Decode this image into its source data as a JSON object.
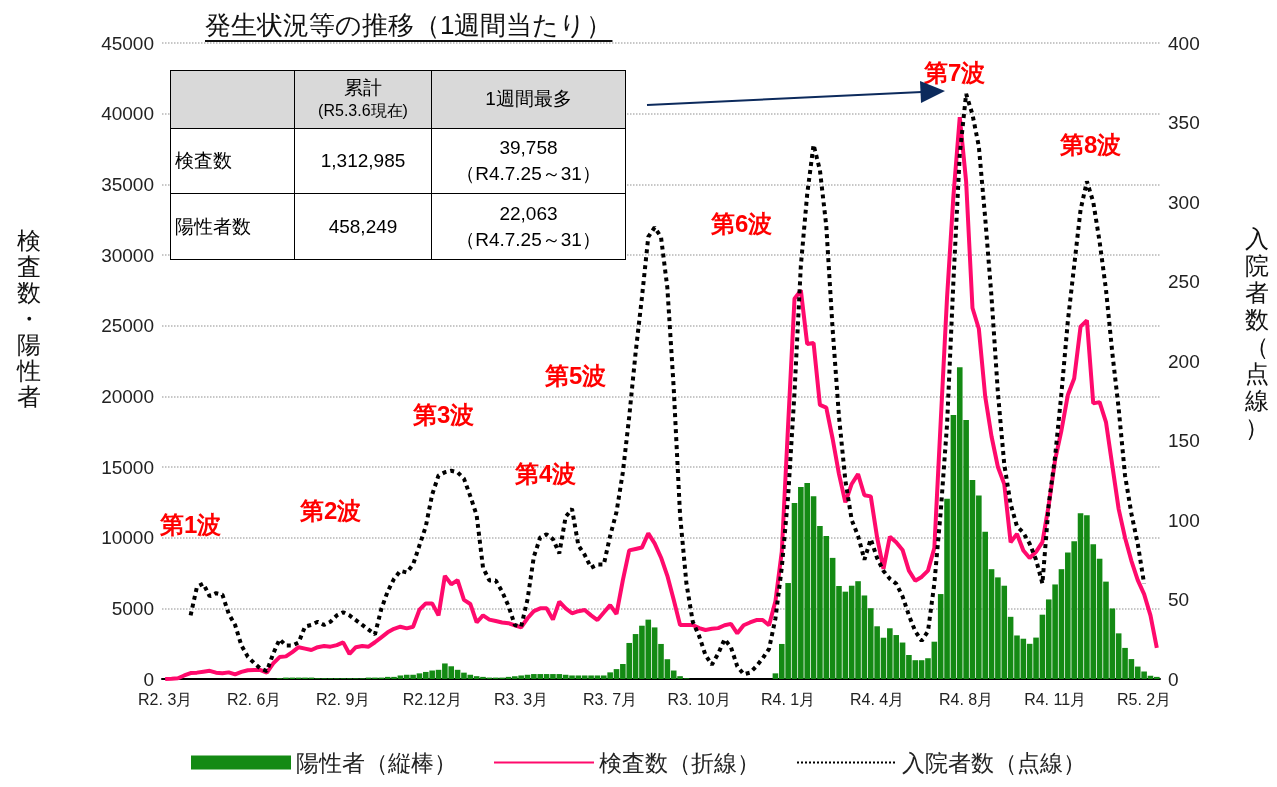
{
  "chart_data": {
    "type": "bar",
    "title": "発生状況等の推移（1週間当たり）",
    "ylabel": "検査数・陽性者",
    "y2label": "入院者数（点線）",
    "categories": [
      "R2. 3月",
      null,
      null,
      null,
      null,
      null,
      null,
      null,
      null,
      null,
      null,
      null,
      null,
      null,
      "R2. 6月",
      null,
      null,
      null,
      null,
      null,
      null,
      null,
      null,
      null,
      null,
      null,
      null,
      null,
      "R2. 9月",
      null,
      null,
      null,
      null,
      null,
      null,
      null,
      null,
      null,
      null,
      null,
      null,
      null,
      "R2.12月",
      null,
      null,
      null,
      null,
      null,
      null,
      null,
      null,
      null,
      null,
      null,
      null,
      null,
      "R3. 3月",
      null,
      null,
      null,
      null,
      null,
      null,
      null,
      null,
      null,
      null,
      null,
      null,
      null,
      "R3. 7月",
      null,
      null,
      null,
      null,
      null,
      null,
      null,
      null,
      null,
      null,
      null,
      null,
      null,
      "R3. 10月",
      null,
      null,
      null,
      null,
      null,
      null,
      null,
      null,
      null,
      null,
      null,
      null,
      null,
      "R4. 1月",
      null,
      null,
      null,
      null,
      null,
      null,
      null,
      null,
      null,
      null,
      null,
      null,
      null,
      "R4. 4月",
      null,
      null,
      null,
      null,
      null,
      null,
      null,
      null,
      null,
      null,
      null,
      null,
      null,
      "R4. 8月",
      null,
      null,
      null,
      null,
      null,
      null,
      null,
      null,
      null,
      null,
      null,
      null,
      null,
      "R4. 11月",
      null,
      null,
      null,
      null,
      null,
      null,
      null,
      null,
      null,
      null,
      null,
      null,
      null,
      "R5. 2月",
      null,
      null
    ],
    "series": [
      {
        "name": "陽性者（縦棒）",
        "type": "bar",
        "color": "#148a14",
        "values": [
          0,
          0,
          0,
          0,
          0,
          0,
          0,
          0,
          0,
          0,
          0,
          0,
          0,
          0,
          0,
          0,
          0,
          0,
          50,
          100,
          100,
          100,
          100,
          100,
          50,
          50,
          50,
          50,
          50,
          50,
          50,
          50,
          100,
          100,
          100,
          150,
          150,
          250,
          300,
          300,
          400,
          500,
          600,
          650,
          1100,
          900,
          650,
          450,
          300,
          200,
          150,
          100,
          100,
          100,
          150,
          200,
          250,
          300,
          350,
          350,
          350,
          350,
          350,
          300,
          250,
          250,
          250,
          250,
          250,
          250,
          470,
          700,
          1060,
          2550,
          3180,
          3770,
          4200,
          3650,
          2480,
          1400,
          600,
          200,
          50,
          0,
          0,
          0,
          0,
          0,
          0,
          0,
          0,
          0,
          0,
          0,
          0,
          0,
          400,
          2480,
          6790,
          12450,
          13580,
          13860,
          12930,
          10830,
          10120,
          8570,
          6580,
          6180,
          6600,
          6920,
          5910,
          5010,
          3730,
          2920,
          3590,
          3110,
          2580,
          1700,
          1330,
          1330,
          1470,
          2640,
          6010,
          12760,
          18680,
          22063,
          18330,
          14080,
          12990,
          10410,
          7770,
          7190,
          6600,
          4400,
          3080,
          2850,
          2490,
          2930,
          4550,
          5630,
          6690,
          7770,
          8950,
          9740,
          11730,
          11590,
          9530,
          8510,
          6890,
          4990,
          3230,
          2200,
          1410,
          880,
          530,
          230,
          150
        ]
      },
      {
        "name": "検査数（折線）",
        "type": "line",
        "color": "#ff0a6c",
        "line_style": "solid",
        "values": [
          0,
          20,
          50,
          250,
          420,
          450,
          520,
          580,
          450,
          400,
          470,
          330,
          500,
          620,
          630,
          630,
          450,
          1100,
          1550,
          1600,
          1900,
          2250,
          2150,
          2050,
          2250,
          2330,
          2290,
          2400,
          2590,
          1770,
          2250,
          2330,
          2290,
          2600,
          2950,
          3300,
          3550,
          3700,
          3580,
          3700,
          4900,
          5350,
          5350,
          4500,
          7300,
          6700,
          7000,
          5600,
          5310,
          4000,
          4500,
          4200,
          4100,
          4000,
          3950,
          3800,
          3660,
          4300,
          4800,
          5000,
          5000,
          4200,
          5470,
          5000,
          4650,
          4800,
          4880,
          4500,
          4170,
          4700,
          5230,
          4600,
          7000,
          9100,
          9200,
          9300,
          10300,
          9600,
          8600,
          7300,
          5600,
          3820,
          3820,
          3820,
          3600,
          3470,
          3550,
          3600,
          3800,
          3900,
          3230,
          3800,
          4000,
          4170,
          4170,
          3800,
          5500,
          9000,
          18000,
          26900,
          27500,
          23700,
          23780,
          19390,
          19200,
          17000,
          14500,
          12500,
          13800,
          14500,
          13000,
          12920,
          10000,
          7800,
          10070,
          9670,
          9130,
          7670,
          6950,
          7220,
          7670,
          9270,
          18190,
          27000,
          34170,
          39758,
          35200,
          26250,
          24780,
          20000,
          17160,
          15000,
          13790,
          9680,
          10270,
          9090,
          8560,
          9000,
          9680,
          12320,
          15500,
          17600,
          20090,
          21260,
          24930,
          25370,
          19500,
          19590,
          18180,
          15100,
          12020,
          10000,
          8360,
          7000,
          6010,
          4500,
          2200
        ]
      },
      {
        "name": "入院者数（点線）",
        "type": "line",
        "axis": "y2",
        "color": "#000000",
        "line_style": "dotted",
        "values": [
          null,
          null,
          null,
          null,
          40,
          58,
          60,
          52,
          54,
          53,
          41,
          34,
          21,
          14,
          10,
          6.5,
          5,
          16,
          25,
          21,
          21,
          23,
          33,
          34,
          36,
          34,
          36,
          40,
          42,
          40,
          37,
          34,
          31,
          28,
          44,
          55,
          63,
          68,
          67,
          72,
          84,
          96,
          116,
          128,
          130,
          131,
          130,
          126,
          115,
          103,
          70,
          62,
          62,
          55,
          46,
          34,
          33,
          50,
          77,
          89,
          91,
          88,
          79,
          102,
          107,
          84,
          78,
          70,
          72,
          72,
          90,
          105,
          130,
          165,
          205,
          240,
          278,
          284,
          278,
          246,
          183,
          103,
          60,
          36,
          27,
          15,
          9,
          16,
          25,
          20,
          8,
          3,
          4,
          8,
          13,
          19,
          38,
          70,
          115,
          180,
          260,
          305,
          336,
          320,
          285,
          220,
          165,
          125,
          100,
          90,
          75,
          88,
          76,
          68,
          63,
          60,
          52,
          40,
          30,
          24,
          30,
          60,
          105,
          160,
          250,
          330,
          368,
          355,
          335,
          290,
          240,
          180,
          135,
          110,
          96,
          92,
          85,
          75,
          60,
          110,
          140,
          180,
          225,
          260,
          295,
          313,
          300,
          275,
          245,
          205,
          170,
          128,
          104,
          85,
          60,
          null,
          null
        ]
      }
    ],
    "ylim": [
      0,
      45000
    ],
    "yticks": [
      0,
      5000,
      10000,
      15000,
      20000,
      25000,
      30000,
      35000,
      40000,
      45000
    ],
    "y2lim": [
      0,
      400
    ],
    "y2ticks": [
      0,
      50,
      100,
      150,
      200,
      250,
      300,
      350,
      400
    ],
    "grid": "y",
    "legend": "bottom",
    "marker": "none",
    "annotations": [
      "累計",
      "(R5.3.6現在)",
      "1週間最多",
      "検査数",
      "1,312,985",
      "39,758",
      "（R4.7.25～31）",
      "陽性者数",
      "458,249",
      "22,063",
      "（R4.7.25～31）",
      "第1波",
      "第2波",
      "第3波",
      "第4波",
      "第5波",
      "第6波",
      "第7波",
      "第8波"
    ]
  }
}
